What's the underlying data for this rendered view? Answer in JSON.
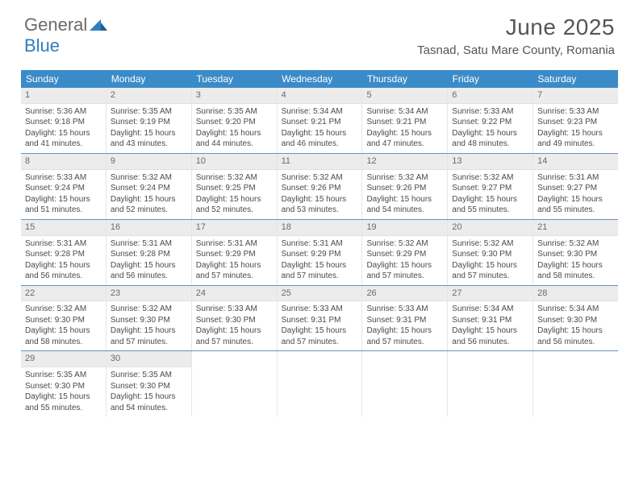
{
  "logo": {
    "text_gray": "General",
    "text_blue": "Blue"
  },
  "title": "June 2025",
  "location": "Tasnad, Satu Mare County, Romania",
  "headers": [
    "Sunday",
    "Monday",
    "Tuesday",
    "Wednesday",
    "Thursday",
    "Friday",
    "Saturday"
  ],
  "colors": {
    "header_bg": "#3b8bc8",
    "week_border": "#6a93b8",
    "daynum_bg": "#ececec"
  },
  "labels": {
    "sunrise": "Sunrise:",
    "sunset": "Sunset:",
    "daylight": "Daylight:"
  },
  "days": [
    {
      "n": 1,
      "sunrise": "5:36 AM",
      "sunset": "9:18 PM",
      "daylight": "15 hours and 41 minutes."
    },
    {
      "n": 2,
      "sunrise": "5:35 AM",
      "sunset": "9:19 PM",
      "daylight": "15 hours and 43 minutes."
    },
    {
      "n": 3,
      "sunrise": "5:35 AM",
      "sunset": "9:20 PM",
      "daylight": "15 hours and 44 minutes."
    },
    {
      "n": 4,
      "sunrise": "5:34 AM",
      "sunset": "9:21 PM",
      "daylight": "15 hours and 46 minutes."
    },
    {
      "n": 5,
      "sunrise": "5:34 AM",
      "sunset": "9:21 PM",
      "daylight": "15 hours and 47 minutes."
    },
    {
      "n": 6,
      "sunrise": "5:33 AM",
      "sunset": "9:22 PM",
      "daylight": "15 hours and 48 minutes."
    },
    {
      "n": 7,
      "sunrise": "5:33 AM",
      "sunset": "9:23 PM",
      "daylight": "15 hours and 49 minutes."
    },
    {
      "n": 8,
      "sunrise": "5:33 AM",
      "sunset": "9:24 PM",
      "daylight": "15 hours and 51 minutes."
    },
    {
      "n": 9,
      "sunrise": "5:32 AM",
      "sunset": "9:24 PM",
      "daylight": "15 hours and 52 minutes."
    },
    {
      "n": 10,
      "sunrise": "5:32 AM",
      "sunset": "9:25 PM",
      "daylight": "15 hours and 52 minutes."
    },
    {
      "n": 11,
      "sunrise": "5:32 AM",
      "sunset": "9:26 PM",
      "daylight": "15 hours and 53 minutes."
    },
    {
      "n": 12,
      "sunrise": "5:32 AM",
      "sunset": "9:26 PM",
      "daylight": "15 hours and 54 minutes."
    },
    {
      "n": 13,
      "sunrise": "5:32 AM",
      "sunset": "9:27 PM",
      "daylight": "15 hours and 55 minutes."
    },
    {
      "n": 14,
      "sunrise": "5:31 AM",
      "sunset": "9:27 PM",
      "daylight": "15 hours and 55 minutes."
    },
    {
      "n": 15,
      "sunrise": "5:31 AM",
      "sunset": "9:28 PM",
      "daylight": "15 hours and 56 minutes."
    },
    {
      "n": 16,
      "sunrise": "5:31 AM",
      "sunset": "9:28 PM",
      "daylight": "15 hours and 56 minutes."
    },
    {
      "n": 17,
      "sunrise": "5:31 AM",
      "sunset": "9:29 PM",
      "daylight": "15 hours and 57 minutes."
    },
    {
      "n": 18,
      "sunrise": "5:31 AM",
      "sunset": "9:29 PM",
      "daylight": "15 hours and 57 minutes."
    },
    {
      "n": 19,
      "sunrise": "5:32 AM",
      "sunset": "9:29 PM",
      "daylight": "15 hours and 57 minutes."
    },
    {
      "n": 20,
      "sunrise": "5:32 AM",
      "sunset": "9:30 PM",
      "daylight": "15 hours and 57 minutes."
    },
    {
      "n": 21,
      "sunrise": "5:32 AM",
      "sunset": "9:30 PM",
      "daylight": "15 hours and 58 minutes."
    },
    {
      "n": 22,
      "sunrise": "5:32 AM",
      "sunset": "9:30 PM",
      "daylight": "15 hours and 58 minutes."
    },
    {
      "n": 23,
      "sunrise": "5:32 AM",
      "sunset": "9:30 PM",
      "daylight": "15 hours and 57 minutes."
    },
    {
      "n": 24,
      "sunrise": "5:33 AM",
      "sunset": "9:30 PM",
      "daylight": "15 hours and 57 minutes."
    },
    {
      "n": 25,
      "sunrise": "5:33 AM",
      "sunset": "9:31 PM",
      "daylight": "15 hours and 57 minutes."
    },
    {
      "n": 26,
      "sunrise": "5:33 AM",
      "sunset": "9:31 PM",
      "daylight": "15 hours and 57 minutes."
    },
    {
      "n": 27,
      "sunrise": "5:34 AM",
      "sunset": "9:31 PM",
      "daylight": "15 hours and 56 minutes."
    },
    {
      "n": 28,
      "sunrise": "5:34 AM",
      "sunset": "9:30 PM",
      "daylight": "15 hours and 56 minutes."
    },
    {
      "n": 29,
      "sunrise": "5:35 AM",
      "sunset": "9:30 PM",
      "daylight": "15 hours and 55 minutes."
    },
    {
      "n": 30,
      "sunrise": "5:35 AM",
      "sunset": "9:30 PM",
      "daylight": "15 hours and 54 minutes."
    }
  ]
}
